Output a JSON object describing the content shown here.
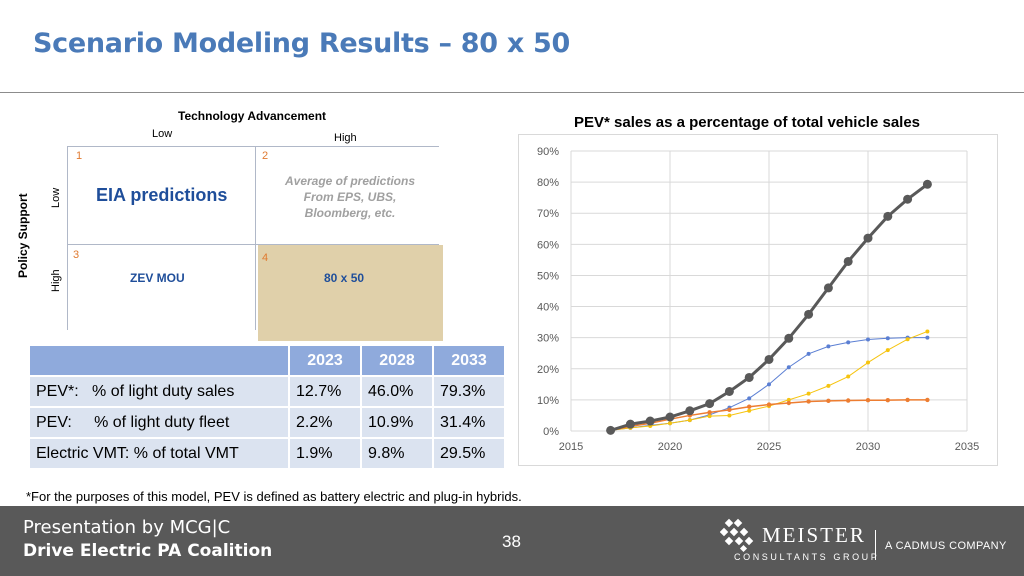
{
  "title": "Scenario Modeling Results – 80 x 50",
  "matrix": {
    "top_axis": "Technology Advancement",
    "top_low": "Low",
    "top_high": "High",
    "side_axis": "Policy Support",
    "side_low": "Low",
    "side_high": "High",
    "q1_num": "1",
    "q2_num": "2",
    "q3_num": "3",
    "q4_num": "4",
    "q1_text": "EIA predictions",
    "q2_line1": "Average of predictions",
    "q2_line2": "From EPS, UBS,",
    "q2_line3": "Bloomberg, etc.",
    "q3_text": "ZEV MOU",
    "q4_text": "80 x 50"
  },
  "table": {
    "headers": [
      "",
      "2023",
      "2028",
      "2033"
    ],
    "rows": [
      [
        "PEV*:   % of light duty sales",
        "12.7%",
        "46.0%",
        "79.3%"
      ],
      [
        "PEV:     % of light duty fleet",
        "2.2%",
        "10.9%",
        "31.4%"
      ],
      [
        "Electric VMT: % of total VMT",
        "1.9%",
        "9.8%",
        "29.5%"
      ]
    ]
  },
  "chart_title": "PEV* sales as a percentage of total vehicle sales",
  "chart_data": {
    "type": "line",
    "title": "PEV* sales as a percentage of total vehicle sales",
    "xlabel": "",
    "ylabel": "",
    "xlim": [
      2015,
      2035
    ],
    "ylim": [
      0,
      90
    ],
    "x_ticks": [
      "2015",
      "2020",
      "2025",
      "2030",
      "2035"
    ],
    "y_ticks": [
      "0%",
      "10%",
      "20%",
      "30%",
      "40%",
      "50%",
      "60%",
      "70%",
      "80%",
      "90%"
    ],
    "grid": true,
    "legend": "none",
    "series": [
      {
        "color": "#595959",
        "x": [
          2017,
          2018,
          2019,
          2020,
          2021,
          2022,
          2023,
          2024,
          2025,
          2026,
          2027,
          2028,
          2029,
          2030,
          2031,
          2032,
          2033
        ],
        "y": [
          0.2,
          2.2,
          3.2,
          4.5,
          6.5,
          8.8,
          12.7,
          17.2,
          23,
          29.8,
          37.5,
          46,
          54.5,
          62,
          69,
          74.5,
          79.3
        ]
      },
      {
        "color": "#5b7fd3",
        "x": [
          2017,
          2018,
          2019,
          2020,
          2021,
          2022,
          2023,
          2024,
          2025,
          2026,
          2027,
          2028,
          2029,
          2030,
          2031,
          2032,
          2033
        ],
        "y": [
          0.2,
          1,
          1.8,
          2.5,
          3.5,
          5.2,
          7.5,
          10.5,
          15,
          20.5,
          24.8,
          27.2,
          28.5,
          29.4,
          29.8,
          30,
          30
        ]
      },
      {
        "color": "#f6c40f",
        "x": [
          2017,
          2018,
          2019,
          2020,
          2021,
          2022,
          2023,
          2024,
          2025,
          2026,
          2027,
          2028,
          2029,
          2030,
          2031,
          2032,
          2033
        ],
        "y": [
          0.2,
          1,
          1.6,
          2.5,
          3.5,
          4.8,
          5,
          6.5,
          8,
          10,
          12,
          14.5,
          17.5,
          22,
          26,
          29.5,
          32
        ]
      },
      {
        "color": "#ed7d31",
        "x": [
          2017,
          2018,
          2019,
          2020,
          2021,
          2022,
          2023,
          2024,
          2025,
          2026,
          2027,
          2028,
          2029,
          2030,
          2031,
          2032,
          2033
        ],
        "y": [
          0.2,
          1.5,
          2.5,
          3.8,
          5,
          6,
          6.8,
          7.8,
          8.5,
          9,
          9.5,
          9.7,
          9.8,
          9.9,
          9.9,
          10,
          10
        ]
      }
    ]
  },
  "footnote": "*For the purposes of this model, PEV is defined as battery electric and plug-in hybrids.",
  "footer": {
    "presentation": "Presentation by MCG|C",
    "organization": "Drive Electric PA Coalition",
    "page_number": "38",
    "logo_name": "MEISTER",
    "logo_sub": "CONSULTANTS GROUP",
    "cadmus": "A CADMUS COMPANY"
  }
}
